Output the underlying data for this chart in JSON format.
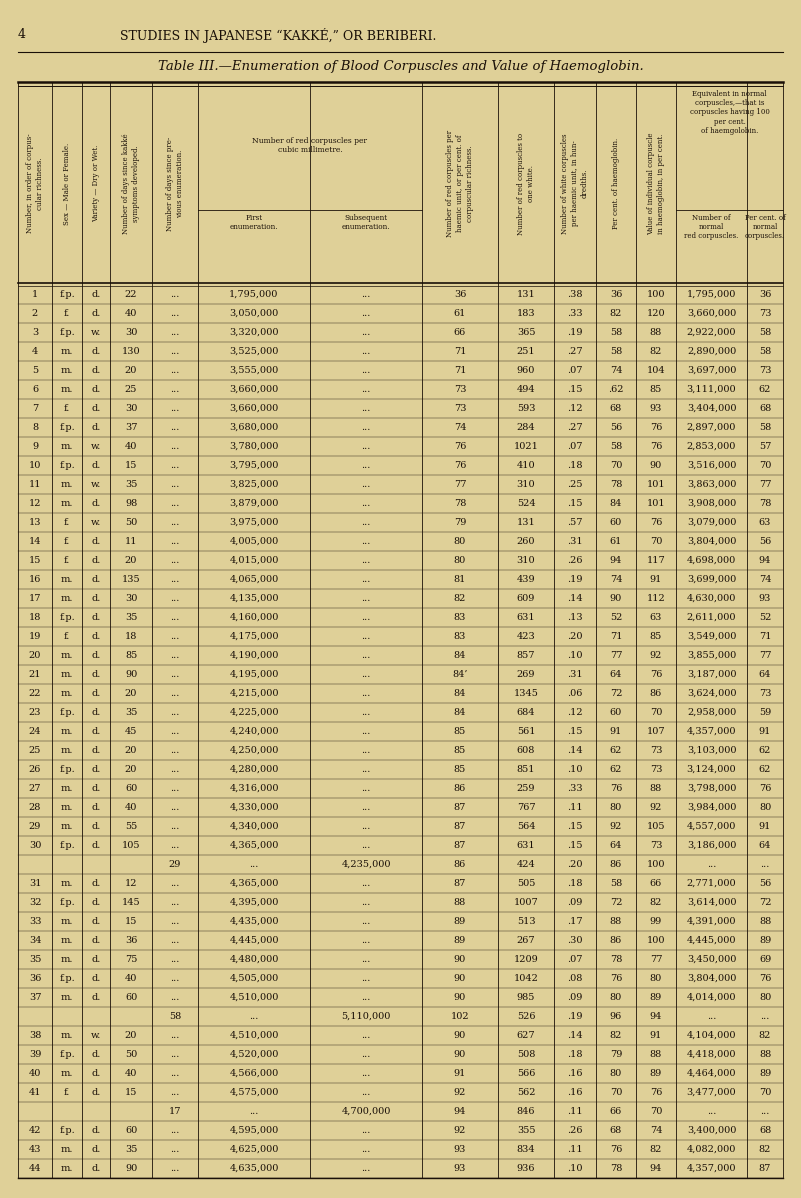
{
  "page_header_num": "4",
  "page_header_text": "STUDIES IN JAPANESE “KAKKÉ,” OR BERIBERI.",
  "table_title": "Table III.—Enumeration of Blood Corpuscles and Value of Haemoglobin.",
  "bg_color": "#dfd098",
  "text_color": "#1a1008",
  "rows": [
    [
      1,
      "f.p.",
      "d.",
      "22",
      "...",
      "1,795,000",
      "...",
      "36",
      "131",
      ".38",
      "36",
      "100",
      "1,795,000",
      "36"
    ],
    [
      2,
      "f.",
      "d.",
      "40",
      "...",
      "3,050,000",
      "...",
      "61",
      "183",
      ".33",
      "82",
      "120",
      "3,660,000",
      "73"
    ],
    [
      3,
      "f.p.",
      "w.",
      "30",
      "...",
      "3,320,000",
      "...",
      "66",
      "365",
      ".19",
      "58",
      "88",
      "2,922,000",
      "58"
    ],
    [
      4,
      "m.",
      "d.",
      "130",
      "...",
      "3,525,000",
      "...",
      "71",
      "251",
      ".27",
      "58",
      "82",
      "2,890,000",
      "58"
    ],
    [
      5,
      "m.",
      "d.",
      "20",
      "...",
      "3,555,000",
      "...",
      "71",
      "960",
      ".07",
      "74",
      "104",
      "3,697,000",
      "73"
    ],
    [
      6,
      "m.",
      "d.",
      "25",
      "...",
      "3,660,000",
      "...",
      "73",
      "494",
      ".15",
      ".62",
      "85",
      "3,111,000",
      "62"
    ],
    [
      7,
      "f.",
      "d.",
      "30",
      "...",
      "3,660,000",
      "...",
      "73",
      "593",
      ".12",
      "68",
      "93",
      "3,404,000",
      "68"
    ],
    [
      8,
      "f.p.",
      "d.",
      "37",
      "...",
      "3,680,000",
      "...",
      "74",
      "284",
      ".27",
      "56",
      "76",
      "2,897,000",
      "58"
    ],
    [
      9,
      "m.",
      "w.",
      "40",
      "...",
      "3,780,000",
      "...",
      "76",
      "1021",
      ".07",
      "58",
      "76",
      "2,853,000",
      "57"
    ],
    [
      10,
      "f.p.",
      "d.",
      "15",
      "...",
      "3,795,000",
      "...",
      "76",
      "410",
      ".18",
      "70",
      "90",
      "3,516,000",
      "70"
    ],
    [
      11,
      "m.",
      "w.",
      "35",
      "...",
      "3,825,000",
      "...",
      "77",
      "310",
      ".25",
      "78",
      "101",
      "3,863,000",
      "77"
    ],
    [
      12,
      "m.",
      "d.",
      "98",
      "...",
      "3,879,000",
      "...",
      "78",
      "524",
      ".15",
      "84",
      "101",
      "3,908,000",
      "78"
    ],
    [
      13,
      "f.",
      "w.",
      "50",
      "...",
      "3,975,000",
      "...",
      "79",
      "131",
      ".57",
      "60",
      "76",
      "3,079,000",
      "63"
    ],
    [
      14,
      "f.",
      "d.",
      "11",
      "...",
      "4,005,000",
      "...",
      "80",
      "260",
      ".31",
      "61",
      "70",
      "3,804,000",
      "56"
    ],
    [
      15,
      "f.",
      "d.",
      "20",
      "...",
      "4,015,000",
      "...",
      "80",
      "310",
      ".26",
      "94",
      "117",
      "4,698,000",
      "94"
    ],
    [
      16,
      "m.",
      "d.",
      "135",
      "...",
      "4,065,000",
      "...",
      "81",
      "439",
      ".19",
      "74",
      "91",
      "3,699,000",
      "74"
    ],
    [
      17,
      "m.",
      "d.",
      "30",
      "...",
      "4,135,000",
      "...",
      "82",
      "609",
      ".14",
      "90",
      "112",
      "4,630,000",
      "93"
    ],
    [
      18,
      "f.p.",
      "d.",
      "35",
      "...",
      "4,160,000",
      "...",
      "83",
      "631",
      ".13",
      "52",
      "63",
      "2,611,000",
      "52"
    ],
    [
      19,
      "f.",
      "d.",
      "18",
      "...",
      "4,175,000",
      "...",
      "83",
      "423",
      ".20",
      "71",
      "85",
      "3,549,000",
      "71"
    ],
    [
      20,
      "m.",
      "d.",
      "85",
      "...",
      "4,190,000",
      "...",
      "84",
      "857",
      ".10",
      "77",
      "92",
      "3,855,000",
      "77"
    ],
    [
      21,
      "m.",
      "d.",
      "90",
      "...",
      "4,195,000",
      "...",
      "84’",
      "269",
      ".31",
      "64",
      "76",
      "3,187,000",
      "64"
    ],
    [
      22,
      "m.",
      "d.",
      "20",
      "...",
      "4,215,000",
      "...",
      "84",
      "1345",
      ".06",
      "72",
      "86",
      "3,624,000",
      "73"
    ],
    [
      23,
      "f.p.",
      "d.",
      "35",
      "...",
      "4,225,000",
      "...",
      "84",
      "684",
      ".12",
      "60",
      "70",
      "2,958,000",
      "59"
    ],
    [
      24,
      "m.",
      "d.",
      "45",
      "...",
      "4,240,000",
      "...",
      "85",
      "561",
      ".15",
      "91",
      "107",
      "4,357,000",
      "91"
    ],
    [
      25,
      "m.",
      "d.",
      "20",
      "...",
      "4,250,000",
      "...",
      "85",
      "608",
      ".14",
      "62",
      "73",
      "3,103,000",
      "62"
    ],
    [
      26,
      "f.p.",
      "d.",
      "20",
      "...",
      "4,280,000",
      "...",
      "85",
      "851",
      ".10",
      "62",
      "73",
      "3,124,000",
      "62"
    ],
    [
      27,
      "m.",
      "d.",
      "60",
      "...",
      "4,316,000",
      "...",
      "86",
      "259",
      ".33",
      "76",
      "88",
      "3,798,000",
      "76"
    ],
    [
      28,
      "m.",
      "d.",
      "40",
      "...",
      "4,330,000",
      "...",
      "87",
      "767",
      ".11",
      "80",
      "92",
      "3,984,000",
      "80"
    ],
    [
      29,
      "m.",
      "d.",
      "55",
      "...",
      "4,340,000",
      "...",
      "87",
      "564",
      ".15",
      "92",
      "105",
      "4,557,000",
      "91"
    ],
    [
      30,
      "f.p.",
      "d.",
      "105",
      "...",
      "4,365,000",
      "...",
      "87",
      "631",
      ".15",
      "64",
      "73",
      "3,186,000",
      "64"
    ],
    [
      "sub",
      "",
      "",
      "",
      "29",
      "...",
      "4,235,000",
      "86",
      "424",
      ".20",
      "86",
      "100",
      "...",
      "..."
    ],
    [
      31,
      "m.",
      "d.",
      "12",
      "...",
      "4,365,000",
      "...",
      "87",
      "505",
      ".18",
      "58",
      "66",
      "2,771,000",
      "56"
    ],
    [
      32,
      "f.p.",
      "d.",
      "145",
      "...",
      "4,395,000",
      "...",
      "88",
      "1007",
      ".09",
      "72",
      "82",
      "3,614,000",
      "72"
    ],
    [
      33,
      "m.",
      "d.",
      "15",
      "...",
      "4,435,000",
      "...",
      "89",
      "513",
      ".17",
      "88",
      "99",
      "4,391,000",
      "88"
    ],
    [
      34,
      "m.",
      "d.",
      "36",
      "...",
      "4,445,000",
      "...",
      "89",
      "267",
      ".30",
      "86",
      "100",
      "4,445,000",
      "89"
    ],
    [
      35,
      "m.",
      "d.",
      "75",
      "...",
      "4,480,000",
      "...",
      "90",
      "1209",
      ".07",
      "78",
      "77",
      "3,450,000",
      "69"
    ],
    [
      36,
      "f.p.",
      "d.",
      "40",
      "...",
      "4,505,000",
      "...",
      "90",
      "1042",
      ".08",
      "76",
      "80",
      "3,804,000",
      "76"
    ],
    [
      37,
      "m.",
      "d.",
      "60",
      "...",
      "4,510,000",
      "...",
      "90",
      "985",
      ".09",
      "80",
      "89",
      "4,014,000",
      "80"
    ],
    [
      "sub",
      "",
      "",
      "",
      "58",
      "...",
      "5,110,000",
      "102",
      "526",
      ".19",
      "96",
      "94",
      "...",
      "..."
    ],
    [
      38,
      "m.",
      "w.",
      "20",
      "...",
      "4,510,000",
      "...",
      "90",
      "627",
      ".14",
      "82",
      "91",
      "4,104,000",
      "82"
    ],
    [
      39,
      "f.p.",
      "d.",
      "50",
      "...",
      "4,520,000",
      "...",
      "90",
      "508",
      ".18",
      "79",
      "88",
      "4,418,000",
      "88"
    ],
    [
      40,
      "m.",
      "d.",
      "40",
      "...",
      "4,566,000",
      "...",
      "91",
      "566",
      ".16",
      "80",
      "89",
      "4,464,000",
      "89"
    ],
    [
      41,
      "f.",
      "d.",
      "15",
      "...",
      "4,575,000",
      "...",
      "92",
      "562",
      ".16",
      "70",
      "76",
      "3,477,000",
      "70"
    ],
    [
      "sub",
      "",
      "",
      "",
      "17",
      "...",
      "4,700,000",
      "94",
      "846",
      ".11",
      "66",
      "70",
      "...",
      "..."
    ],
    [
      42,
      "f.p.",
      "d.",
      "60",
      "...",
      "4,595,000",
      "...",
      "92",
      "355",
      ".26",
      "68",
      "74",
      "3,400,000",
      "68"
    ],
    [
      43,
      "m.",
      "d.",
      "35",
      "...",
      "4,625,000",
      "...",
      "93",
      "834",
      ".11",
      "76",
      "82",
      "4,082,000",
      "82"
    ],
    [
      44,
      "m.",
      "d.",
      "90",
      "...",
      "4,635,000",
      "...",
      "93",
      "936",
      ".10",
      "78",
      "94",
      "4,357,000",
      "87"
    ]
  ]
}
